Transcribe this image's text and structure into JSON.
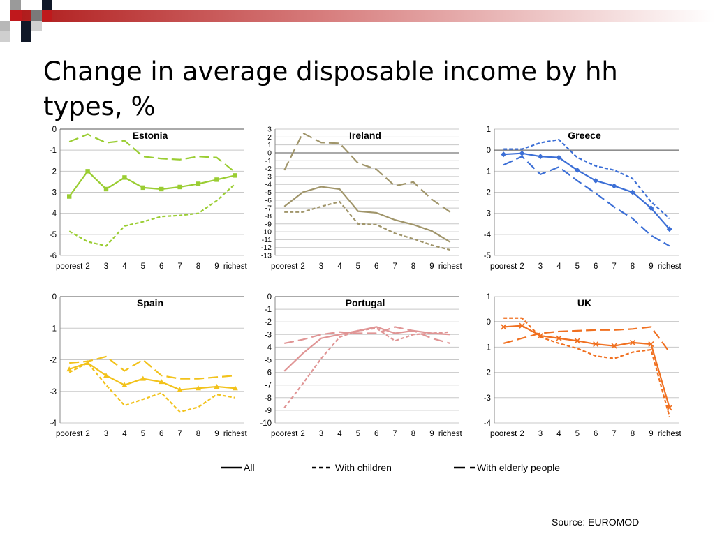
{
  "slide": {
    "title": "Change in average disposable income by hh types, %",
    "source": "Source: EUROMOD"
  },
  "legend": [
    {
      "label": "All",
      "dash": "none"
    },
    {
      "label": "With children",
      "dash": "short"
    },
    {
      "label": "With elderly people",
      "dash": "long"
    }
  ],
  "chart_data": [
    {
      "type": "line",
      "title": "Estonia",
      "color": "#9acd32",
      "categories": [
        "poorest",
        "2",
        "3",
        "4",
        "5",
        "6",
        "7",
        "8",
        "9",
        "richest"
      ],
      "ylim": [
        -6,
        0
      ],
      "yticks": [
        0,
        -1,
        -2,
        -3,
        -4,
        -5,
        -6
      ],
      "marker": "square",
      "series": [
        {
          "name": "All",
          "dash": "none",
          "values": [
            -3.2,
            -2.0,
            -2.85,
            -2.3,
            -2.78,
            -2.85,
            -2.75,
            -2.6,
            -2.4,
            -2.2
          ]
        },
        {
          "name": "With children",
          "dash": "short",
          "values": [
            -4.85,
            -5.35,
            -5.55,
            -4.6,
            -4.4,
            -4.15,
            -4.1,
            -4.0,
            -3.4,
            -2.6
          ]
        },
        {
          "name": "With elderly people",
          "dash": "long",
          "values": [
            -0.6,
            -0.25,
            -0.65,
            -0.55,
            -1.3,
            -1.4,
            -1.45,
            -1.3,
            -1.35,
            -2.05
          ]
        }
      ]
    },
    {
      "type": "line",
      "title": "Ireland",
      "color": "#a0956a",
      "categories": [
        "poorest",
        "2",
        "3",
        "4",
        "5",
        "6",
        "7",
        "8",
        "9",
        "richest"
      ],
      "ylim": [
        -13,
        3
      ],
      "yticks": [
        3,
        2,
        1,
        0,
        -1,
        -2,
        -3,
        -4,
        -5,
        -6,
        -7,
        -8,
        -9,
        -10,
        -11,
        -12,
        -13
      ],
      "marker": "none",
      "series": [
        {
          "name": "All",
          "dash": "none",
          "values": [
            -6.8,
            -5.0,
            -4.3,
            -4.6,
            -7.4,
            -7.6,
            -8.5,
            -9.1,
            -9.9,
            -11.3
          ]
        },
        {
          "name": "With children",
          "dash": "short",
          "values": [
            -7.5,
            -7.5,
            -6.8,
            -6.2,
            -9.0,
            -9.1,
            -10.2,
            -10.9,
            -11.7,
            -12.3
          ]
        },
        {
          "name": "With elderly people",
          "dash": "long",
          "values": [
            -2.2,
            2.5,
            1.3,
            1.2,
            -1.3,
            -2.1,
            -4.2,
            -3.7,
            -5.9,
            -7.5
          ]
        }
      ]
    },
    {
      "type": "line",
      "title": "Greece",
      "color": "#3c6fd6",
      "categories": [
        "poorest",
        "2",
        "3",
        "4",
        "5",
        "6",
        "7",
        "8",
        "9",
        "richest"
      ],
      "ylim": [
        -5,
        1
      ],
      "yticks": [
        1,
        0,
        -1,
        -2,
        -3,
        -4,
        -5
      ],
      "marker": "diamond",
      "series": [
        {
          "name": "All",
          "dash": "none",
          "values": [
            -0.2,
            -0.15,
            -0.3,
            -0.35,
            -0.95,
            -1.45,
            -1.7,
            -2.0,
            -2.75,
            -3.75
          ]
        },
        {
          "name": "With children",
          "dash": "short",
          "values": [
            0.05,
            0.05,
            0.35,
            0.5,
            -0.35,
            -0.75,
            -0.95,
            -1.35,
            -2.45,
            -3.25
          ]
        },
        {
          "name": "With elderly people",
          "dash": "long",
          "values": [
            -0.7,
            -0.3,
            -1.15,
            -0.8,
            -1.45,
            -2.05,
            -2.7,
            -3.25,
            -4.05,
            -4.55
          ]
        }
      ]
    },
    {
      "type": "line",
      "title": "Spain",
      "color": "#f2c21b",
      "categories": [
        "poorest",
        "2",
        "3",
        "4",
        "5",
        "6",
        "7",
        "8",
        "9",
        "richest"
      ],
      "ylim": [
        -4,
        0
      ],
      "yticks": [
        0,
        -1,
        -2,
        -3,
        -4
      ],
      "marker": "triangle",
      "series": [
        {
          "name": "All",
          "dash": "none",
          "values": [
            -2.3,
            -2.1,
            -2.5,
            -2.8,
            -2.6,
            -2.7,
            -2.95,
            -2.9,
            -2.85,
            -2.9
          ]
        },
        {
          "name": "With children",
          "dash": "short",
          "values": [
            -2.4,
            -2.1,
            -2.8,
            -3.45,
            -3.25,
            -3.05,
            -3.65,
            -3.5,
            -3.1,
            -3.2
          ]
        },
        {
          "name": "With elderly people",
          "dash": "long",
          "values": [
            -2.1,
            -2.05,
            -1.9,
            -2.35,
            -2.0,
            -2.5,
            -2.6,
            -2.6,
            -2.55,
            -2.5
          ]
        }
      ]
    },
    {
      "type": "line",
      "title": "Portugal",
      "color": "#e09595",
      "categories": [
        "poorest",
        "2",
        "3",
        "4",
        "5",
        "6",
        "7",
        "8",
        "9",
        "richest"
      ],
      "ylim": [
        -10,
        0
      ],
      "yticks": [
        0,
        -1,
        -2,
        -3,
        -4,
        -5,
        -6,
        -7,
        -8,
        -9,
        -10
      ],
      "marker": "none",
      "series": [
        {
          "name": "All",
          "dash": "none",
          "values": [
            -5.9,
            -4.5,
            -3.3,
            -3.0,
            -2.7,
            -2.4,
            -2.9,
            -2.7,
            -2.9,
            -3.0
          ]
        },
        {
          "name": "With children",
          "dash": "short",
          "values": [
            -8.8,
            -6.9,
            -4.9,
            -3.2,
            -2.7,
            -2.5,
            -3.5,
            -3.0,
            -2.9,
            -2.8
          ]
        },
        {
          "name": "With elderly people",
          "dash": "long",
          "values": [
            -3.7,
            -3.4,
            -3.0,
            -2.8,
            -2.9,
            -2.9,
            -2.4,
            -2.7,
            -3.3,
            -3.7
          ]
        }
      ]
    },
    {
      "type": "line",
      "title": "UK",
      "color": "#f07020",
      "categories": [
        "poorest",
        "2",
        "3",
        "4",
        "5",
        "6",
        "7",
        "8",
        "9",
        "richest"
      ],
      "ylim": [
        -4,
        1
      ],
      "yticks": [
        1,
        0,
        -1,
        -2,
        -3,
        -4
      ],
      "marker": "x",
      "series": [
        {
          "name": "All",
          "dash": "none",
          "values": [
            -0.2,
            -0.15,
            -0.55,
            -0.65,
            -0.75,
            -0.88,
            -0.95,
            -0.82,
            -0.88,
            -3.4
          ]
        },
        {
          "name": "With children",
          "dash": "short",
          "values": [
            0.15,
            0.15,
            -0.6,
            -0.85,
            -1.05,
            -1.35,
            -1.45,
            -1.2,
            -1.1,
            -3.75
          ]
        },
        {
          "name": "With elderly people",
          "dash": "long",
          "values": [
            -0.85,
            -0.65,
            -0.45,
            -0.38,
            -0.35,
            -0.32,
            -0.32,
            -0.28,
            -0.2,
            -1.2
          ]
        }
      ]
    }
  ]
}
